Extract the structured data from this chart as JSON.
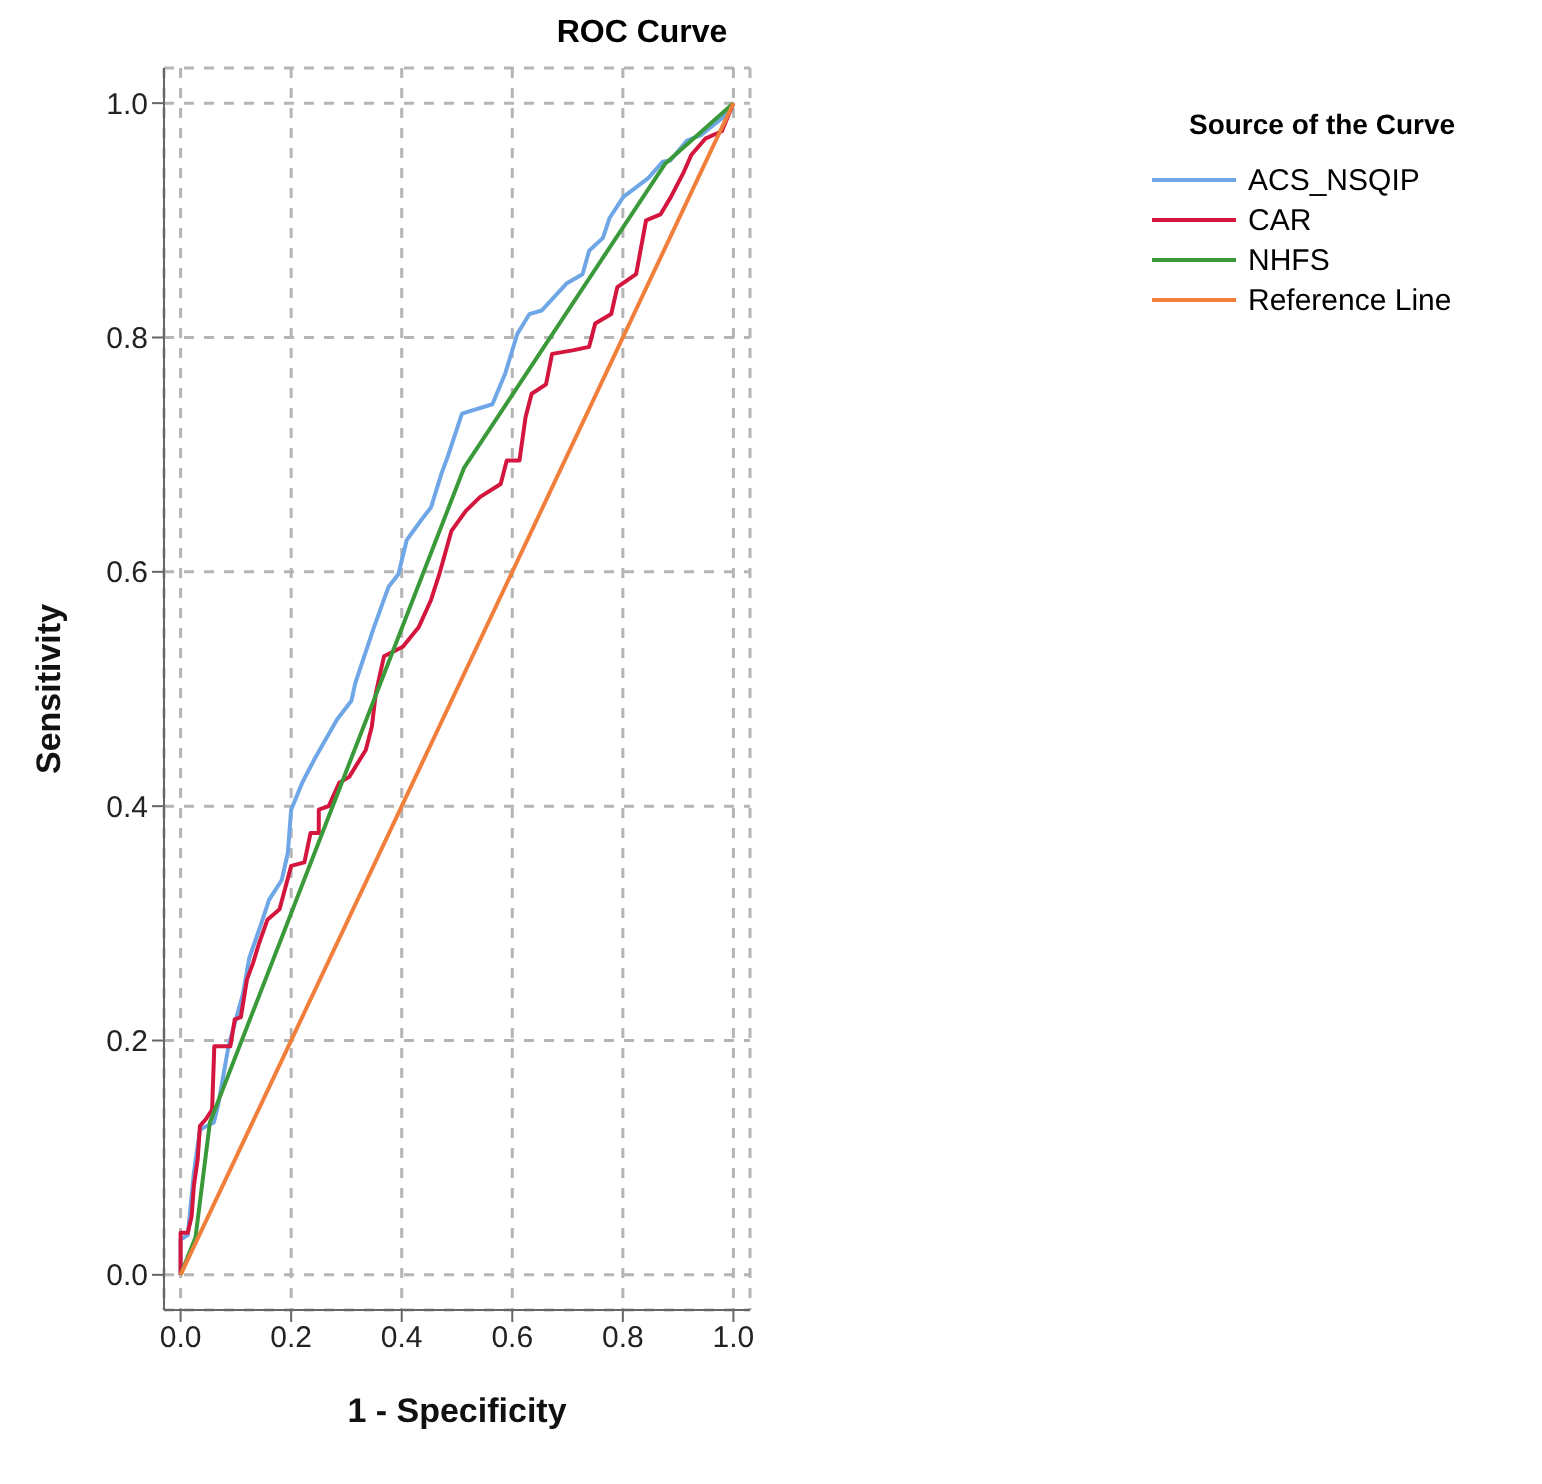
{
  "chart_data": {
    "type": "line",
    "title": "ROC Curve",
    "xlabel": "1 - Specificity",
    "ylabel": "Sensitivity",
    "legend_title": "Source of the Curve",
    "legend": "right",
    "grid": true,
    "line_style": "solid",
    "marker": "none",
    "xlim": [
      -0.03,
      1.03
    ],
    "ylim": [
      -0.03,
      1.03
    ],
    "xticks": [
      {
        "value": 0,
        "label": "0.0"
      },
      {
        "value": 0.2,
        "label": "0.2"
      },
      {
        "value": 0.4,
        "label": "0.4"
      },
      {
        "value": 0.6,
        "label": "0.6"
      },
      {
        "value": 0.8,
        "label": "0.8"
      },
      {
        "value": 1,
        "label": "1.0"
      }
    ],
    "yticks": [
      {
        "value": 0,
        "label": "0.0"
      },
      {
        "value": 0.2,
        "label": "0.2"
      },
      {
        "value": 0.4,
        "label": "0.4"
      },
      {
        "value": 0.6,
        "label": "0.6"
      },
      {
        "value": 0.8,
        "label": "0.8"
      },
      {
        "value": 1,
        "label": "1.0"
      }
    ],
    "series": [
      {
        "name": "ACS_NSQIP",
        "color": "#6ea6e6",
        "x": [
          0,
          0.0,
          0.013,
          0.024,
          0.035,
          0.06,
          0.068,
          0.087,
          0.113,
          0.124,
          0.146,
          0.16,
          0.183,
          0.194,
          0.2,
          0.22,
          0.242,
          0.283,
          0.309,
          0.316,
          0.35,
          0.376,
          0.394,
          0.409,
          0.435,
          0.453,
          0.472,
          0.483,
          0.509,
          0.564,
          0.587,
          0.609,
          0.631,
          0.653,
          0.698,
          0.727,
          0.739,
          0.764,
          0.776,
          0.801,
          0.846,
          0.872,
          0.886,
          0.916,
          0.942,
          0.979,
          1
        ],
        "values": [
          0,
          0.03,
          0.034,
          0.087,
          0.124,
          0.13,
          0.145,
          0.196,
          0.24,
          0.27,
          0.3,
          0.32,
          0.337,
          0.36,
          0.397,
          0.42,
          0.44,
          0.474,
          0.49,
          0.505,
          0.553,
          0.587,
          0.598,
          0.627,
          0.644,
          0.655,
          0.684,
          0.698,
          0.735,
          0.743,
          0.769,
          0.803,
          0.82,
          0.823,
          0.846,
          0.854,
          0.874,
          0.885,
          0.902,
          0.92,
          0.936,
          0.95,
          0.951,
          0.968,
          0.973,
          0.987,
          1
        ]
      },
      {
        "name": "CAR",
        "color": "#d4163e",
        "x": [
          0,
          0.0,
          0.013,
          0.02,
          0.024,
          0.031,
          0.035,
          0.046,
          0.057,
          0.061,
          0.09,
          0.098,
          0.109,
          0.12,
          0.131,
          0.142,
          0.157,
          0.179,
          0.2,
          0.224,
          0.235,
          0.25,
          0.25,
          0.268,
          0.287,
          0.305,
          0.335,
          0.346,
          0.353,
          0.368,
          0.402,
          0.431,
          0.453,
          0.468,
          0.49,
          0.516,
          0.542,
          0.579,
          0.59,
          0.613,
          0.624,
          0.635,
          0.661,
          0.672,
          0.709,
          0.739,
          0.75,
          0.779,
          0.79,
          0.824,
          0.842,
          0.868,
          0.887,
          0.909,
          0.924,
          0.95,
          0.979,
          1
        ],
        "values": [
          0,
          0.036,
          0.036,
          0.05,
          0.076,
          0.099,
          0.127,
          0.133,
          0.141,
          0.195,
          0.195,
          0.218,
          0.22,
          0.252,
          0.266,
          0.283,
          0.303,
          0.312,
          0.349,
          0.352,
          0.377,
          0.377,
          0.397,
          0.4,
          0.42,
          0.425,
          0.448,
          0.468,
          0.496,
          0.528,
          0.536,
          0.553,
          0.576,
          0.598,
          0.635,
          0.652,
          0.664,
          0.675,
          0.695,
          0.695,
          0.732,
          0.752,
          0.76,
          0.786,
          0.789,
          0.792,
          0.812,
          0.82,
          0.843,
          0.854,
          0.9,
          0.905,
          0.92,
          0.94,
          0.956,
          0.97,
          0.976,
          1
        ]
      },
      {
        "name": "NHFS",
        "color": "#3a9a3a",
        "x": [
          0,
          0.027,
          0.053,
          0.513,
          0.876,
          1
        ],
        "values": [
          0,
          0.032,
          0.13,
          0.689,
          0.948,
          1
        ]
      },
      {
        "name": "Reference Line",
        "color": "#f07f3c",
        "x": [
          0,
          1
        ],
        "values": [
          0,
          1
        ]
      }
    ]
  }
}
